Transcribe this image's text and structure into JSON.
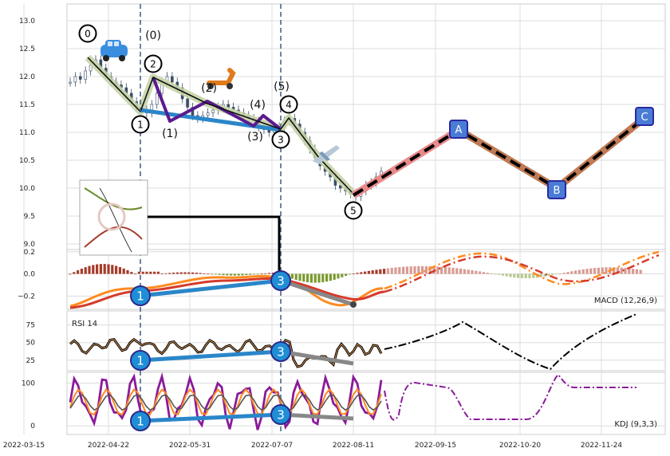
{
  "chart_data": {
    "type": "line",
    "x_ticks": [
      "2022-03-15",
      "2022-04-22",
      "2022-05-31",
      "2022-07-07",
      "2022-08-11",
      "2022-09-15",
      "2022-10-20",
      "2022-11-24"
    ],
    "price_panel": {
      "ylim": [
        8.9,
        13.3
      ],
      "y_ticks": [
        "13.0",
        "12.5",
        "12.0",
        "11.5",
        "11.0",
        "10.5",
        "10.0",
        "9.5",
        "9.0"
      ],
      "candle_close": [
        11.9,
        12.0,
        11.95,
        12.1,
        12.2,
        12.3,
        12.15,
        12.0,
        11.9,
        11.85,
        11.8,
        11.7,
        11.55,
        11.45,
        11.4,
        11.35,
        11.5,
        11.7,
        11.9,
        12.0,
        11.9,
        11.8,
        11.6,
        11.45,
        11.3,
        11.25,
        11.3,
        11.35,
        11.4,
        11.45,
        11.5,
        11.45,
        11.4,
        11.35,
        11.3,
        11.25,
        11.2,
        11.1,
        11.05,
        11.0,
        11.05,
        11.1,
        11.2,
        11.25,
        11.15,
        11.0,
        10.85,
        10.7,
        10.55,
        10.4,
        10.3,
        10.2,
        10.05,
        10.0,
        9.95,
        9.9,
        9.85,
        9.95,
        10.05,
        10.1,
        10.2,
        10.3
      ],
      "wave_labels": [
        "0",
        "2",
        "1",
        "4",
        "3",
        "5"
      ],
      "wave_labels_alt": [
        "(0)",
        "(1)",
        "(2)",
        "(3)",
        "(4)",
        "(5)"
      ],
      "abc_labels": [
        "A",
        "B",
        "C"
      ],
      "projection_y": [
        9.85,
        11.0,
        10.0,
        11.25
      ]
    },
    "macd_panel": {
      "label": "MACD (12,26,9)",
      "ylim": [
        -0.32,
        0.22
      ],
      "y_ticks": [
        "0.2",
        "0.0",
        "−0.2"
      ],
      "divergence_labels": [
        "1",
        "3"
      ]
    },
    "rsi_panel": {
      "label": "RSI 14",
      "ylim": [
        10,
        95
      ],
      "y_ticks": [
        "75",
        "50",
        "25"
      ],
      "divergence_labels": [
        "1",
        "3"
      ]
    },
    "kdj_panel": {
      "label": "KDJ (9,3,3)",
      "ylim": [
        -20,
        125
      ],
      "y_ticks": [
        "100",
        "0"
      ],
      "divergence_labels": [
        "1",
        "3"
      ]
    },
    "colors": {
      "grid": "#d9d9d9",
      "candle": "#3b4f66",
      "wave_fill": "#c6d4a8",
      "wave_line": "#111111",
      "alt_wave": "#5b1a8f",
      "trend_blue": "#2a86c9",
      "proj_pink": "#e98a8a",
      "proj_brown": "#c07a55",
      "abc_box": "#4a7cd6",
      "macd_orange": "#ff8a1e",
      "macd_red": "#d63a2b",
      "hist_pos": "#a73b2a",
      "hist_neg": "#7a9a2e",
      "kdj_purple": "#8a1a9a",
      "vline": "#3e5a80"
    }
  }
}
